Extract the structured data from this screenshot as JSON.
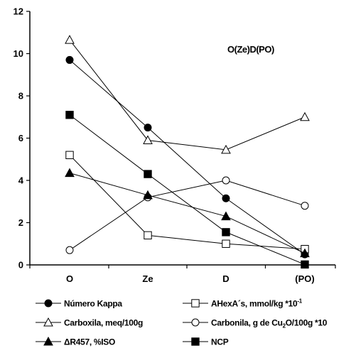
{
  "chart_data": {
    "type": "line",
    "categories": [
      "O",
      "Ze",
      "D",
      "(PO)"
    ],
    "ylim": [
      0,
      12
    ],
    "yticks": [
      0,
      2,
      4,
      6,
      8,
      10,
      12
    ],
    "grid": false,
    "annotation": "O(Ze)D(PO)",
    "legend_position": "bottom",
    "series": [
      {
        "key": "kappa",
        "name": "Número Kappa",
        "marker": "circle-filled",
        "values": [
          9.7,
          6.5,
          3.15,
          0.5
        ]
      },
      {
        "key": "hexa",
        "name": "AHexA´s, mmol/kg *10",
        "name_sup": "-1",
        "marker": "square-open",
        "values": [
          5.2,
          1.4,
          1.0,
          0.75
        ]
      },
      {
        "key": "carboxila",
        "name": "Carboxila, meq/100g",
        "marker": "triangle-open",
        "values": [
          10.65,
          5.9,
          5.45,
          7.0
        ]
      },
      {
        "key": "carbonila",
        "name_parts": [
          "Carbonila, g de Cu",
          "2",
          "O/100g *10"
        ],
        "name": "Carbonila, g de Cu2O/100g *10",
        "marker": "circle-open",
        "values": [
          0.7,
          3.2,
          4.0,
          2.8
        ]
      },
      {
        "key": "r457",
        "name": "ΔR457, %ISO",
        "marker": "triangle-filled",
        "values": [
          4.35,
          3.3,
          2.3,
          0.55
        ]
      },
      {
        "key": "ncp",
        "name": "NCP",
        "marker": "square-filled",
        "values": [
          7.1,
          4.3,
          1.55,
          0.02
        ]
      }
    ]
  }
}
